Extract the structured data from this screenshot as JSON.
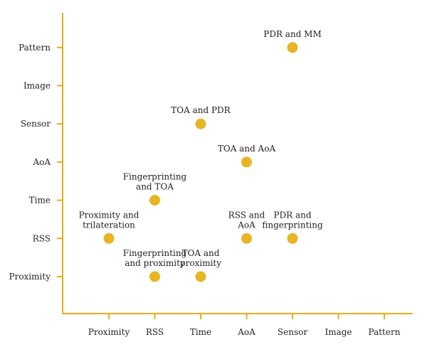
{
  "chart_data": {
    "type": "scatter",
    "title": "",
    "xlabel": "",
    "ylabel": "",
    "x_categories": [
      "Proximity",
      "RSS",
      "Time",
      "AoA",
      "Sensor",
      "Image",
      "Pattern"
    ],
    "y_categories": [
      "Proximity",
      "RSS",
      "Time",
      "AoA",
      "Sensor",
      "Image",
      "Pattern"
    ],
    "grid": false,
    "legend": "none",
    "colors": {
      "axis": "#e8ac1c",
      "point": "#e8b423",
      "text": "#222222"
    },
    "points": [
      {
        "x": "Proximity",
        "y": "RSS",
        "label": [
          "Proximity and",
          "trilateration"
        ]
      },
      {
        "x": "RSS",
        "y": "Proximity",
        "label": [
          "Fingerprinting",
          "and proximity"
        ]
      },
      {
        "x": "RSS",
        "y": "Time",
        "label": [
          "Fingerprinting",
          "and TOA"
        ]
      },
      {
        "x": "Time",
        "y": "Proximity",
        "label": [
          "TOA and",
          "proximity"
        ]
      },
      {
        "x": "Time",
        "y": "Sensor",
        "label": [
          "TOA and PDR"
        ]
      },
      {
        "x": "AoA",
        "y": "AoA",
        "label": [
          "TOA and AoA"
        ]
      },
      {
        "x": "AoA",
        "y": "RSS",
        "label": [
          "RSS and",
          "AoA"
        ]
      },
      {
        "x": "Sensor",
        "y": "RSS",
        "label": [
          "PDR and",
          "fingerprinting"
        ]
      },
      {
        "x": "Sensor",
        "y": "Pattern",
        "label": [
          "PDR and MM"
        ]
      }
    ]
  }
}
